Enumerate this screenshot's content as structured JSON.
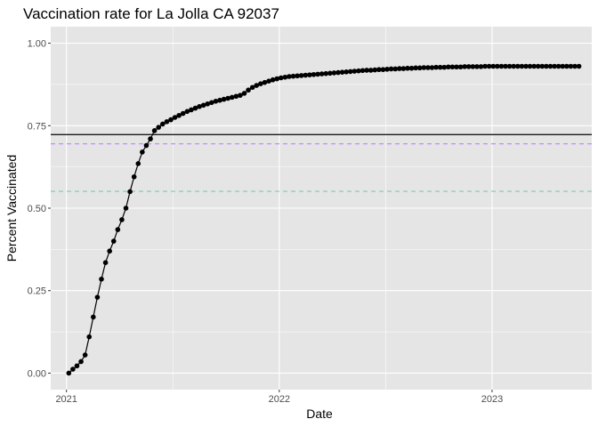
{
  "chart_data": {
    "type": "line",
    "title": "Vaccination rate for La Jolla CA 92037",
    "xlabel": "Date",
    "ylabel": "Percent Vaccinated",
    "x_type": "date",
    "xlim": [
      "2020-12-05",
      "2023-06-21"
    ],
    "ylim": [
      -0.05,
      1.05
    ],
    "x_ticks": [
      {
        "value": "2021-01-01",
        "label": "2021"
      },
      {
        "value": "2022-01-01",
        "label": "2022"
      },
      {
        "value": "2023-01-01",
        "label": "2023"
      }
    ],
    "y_ticks": [
      {
        "value": 0.0,
        "label": "0.00"
      },
      {
        "value": 0.25,
        "label": "0.25"
      },
      {
        "value": 0.5,
        "label": "0.50"
      },
      {
        "value": 0.75,
        "label": "0.75"
      },
      {
        "value": 1.0,
        "label": "1.00"
      }
    ],
    "grid": true,
    "legend": "none",
    "colors": {
      "panel": "#e5e5e5",
      "grid": "#ffffff",
      "line": "#000000",
      "hline_solid": "#1a1a1a",
      "hline_purple": "#c77cff",
      "hline_teal": "#7fc6c2"
    },
    "reference_lines": [
      {
        "y": 0.723,
        "style": "solid",
        "color": "#1a1a1a"
      },
      {
        "y": 0.695,
        "style": "dashed",
        "color": "#c77cff"
      },
      {
        "y": 0.551,
        "style": "dashed",
        "color": "#7fc6c2"
      }
    ],
    "series": [
      {
        "x": [
          "2021-01-05",
          "2021-01-12",
          "2021-01-19",
          "2021-01-26",
          "2021-02-02",
          "2021-02-09",
          "2021-02-16",
          "2021-02-23",
          "2021-03-02",
          "2021-03-09",
          "2021-03-16",
          "2021-03-23",
          "2021-03-30",
          "2021-04-06",
          "2021-04-13",
          "2021-04-20",
          "2021-04-27",
          "2021-05-04",
          "2021-05-11",
          "2021-05-18",
          "2021-05-25",
          "2021-06-01",
          "2021-06-08",
          "2021-06-15",
          "2021-06-22",
          "2021-06-29",
          "2021-07-06",
          "2021-07-13",
          "2021-07-20",
          "2021-07-27",
          "2021-08-03",
          "2021-08-10",
          "2021-08-17",
          "2021-08-24",
          "2021-08-31",
          "2021-09-07",
          "2021-09-14",
          "2021-09-21",
          "2021-09-28",
          "2021-10-05",
          "2021-10-12",
          "2021-10-19",
          "2021-10-26",
          "2021-11-02",
          "2021-11-09",
          "2021-11-16",
          "2021-11-23",
          "2021-11-30",
          "2021-12-07",
          "2021-12-14",
          "2021-12-21",
          "2021-12-28",
          "2022-01-04",
          "2022-01-11",
          "2022-01-18",
          "2022-01-25",
          "2022-02-01",
          "2022-02-08",
          "2022-02-15",
          "2022-02-22",
          "2022-03-01",
          "2022-03-08",
          "2022-03-15",
          "2022-03-22",
          "2022-03-29",
          "2022-04-05",
          "2022-04-12",
          "2022-04-19",
          "2022-04-26",
          "2022-05-03",
          "2022-05-10",
          "2022-05-17",
          "2022-05-24",
          "2022-05-31",
          "2022-06-07",
          "2022-06-14",
          "2022-06-21",
          "2022-06-28",
          "2022-07-05",
          "2022-07-12",
          "2022-07-19",
          "2022-07-26",
          "2022-08-02",
          "2022-08-09",
          "2022-08-16",
          "2022-08-23",
          "2022-08-30",
          "2022-09-06",
          "2022-09-13",
          "2022-09-20",
          "2022-09-27",
          "2022-10-04",
          "2022-10-11",
          "2022-10-18",
          "2022-10-25",
          "2022-11-01",
          "2022-11-08",
          "2022-11-15",
          "2022-11-22",
          "2022-11-29",
          "2022-12-06",
          "2022-12-13",
          "2022-12-20",
          "2022-12-27",
          "2023-01-03",
          "2023-01-10",
          "2023-01-17",
          "2023-01-24",
          "2023-01-31",
          "2023-02-07",
          "2023-02-14",
          "2023-02-21",
          "2023-02-28",
          "2023-03-07",
          "2023-03-14",
          "2023-03-21",
          "2023-03-28",
          "2023-04-04",
          "2023-04-11",
          "2023-04-18",
          "2023-04-25",
          "2023-05-02",
          "2023-05-09",
          "2023-05-16",
          "2023-05-23",
          "2023-05-30"
        ],
        "values": [
          0.0,
          0.012,
          0.022,
          0.035,
          0.055,
          0.11,
          0.17,
          0.23,
          0.285,
          0.335,
          0.37,
          0.4,
          0.435,
          0.465,
          0.5,
          0.55,
          0.595,
          0.635,
          0.67,
          0.69,
          0.71,
          0.735,
          0.745,
          0.755,
          0.762,
          0.768,
          0.775,
          0.781,
          0.787,
          0.793,
          0.798,
          0.803,
          0.808,
          0.812,
          0.816,
          0.82,
          0.824,
          0.827,
          0.83,
          0.833,
          0.836,
          0.839,
          0.842,
          0.848,
          0.858,
          0.866,
          0.872,
          0.877,
          0.881,
          0.885,
          0.889,
          0.892,
          0.895,
          0.897,
          0.899,
          0.9,
          0.901,
          0.902,
          0.903,
          0.904,
          0.905,
          0.906,
          0.907,
          0.908,
          0.909,
          0.91,
          0.911,
          0.912,
          0.913,
          0.914,
          0.915,
          0.916,
          0.917,
          0.918,
          0.918,
          0.919,
          0.92,
          0.92,
          0.921,
          0.922,
          0.922,
          0.923,
          0.923,
          0.924,
          0.924,
          0.925,
          0.925,
          0.926,
          0.926,
          0.926,
          0.927,
          0.927,
          0.927,
          0.928,
          0.928,
          0.928,
          0.928,
          0.929,
          0.929,
          0.929,
          0.929,
          0.929,
          0.93,
          0.93,
          0.93,
          0.93,
          0.93,
          0.93,
          0.93,
          0.93,
          0.93,
          0.93,
          0.93,
          0.93,
          0.93,
          0.93,
          0.93,
          0.93,
          0.93,
          0.93,
          0.93,
          0.93,
          0.93,
          0.93,
          0.93,
          0.93
        ]
      }
    ]
  }
}
